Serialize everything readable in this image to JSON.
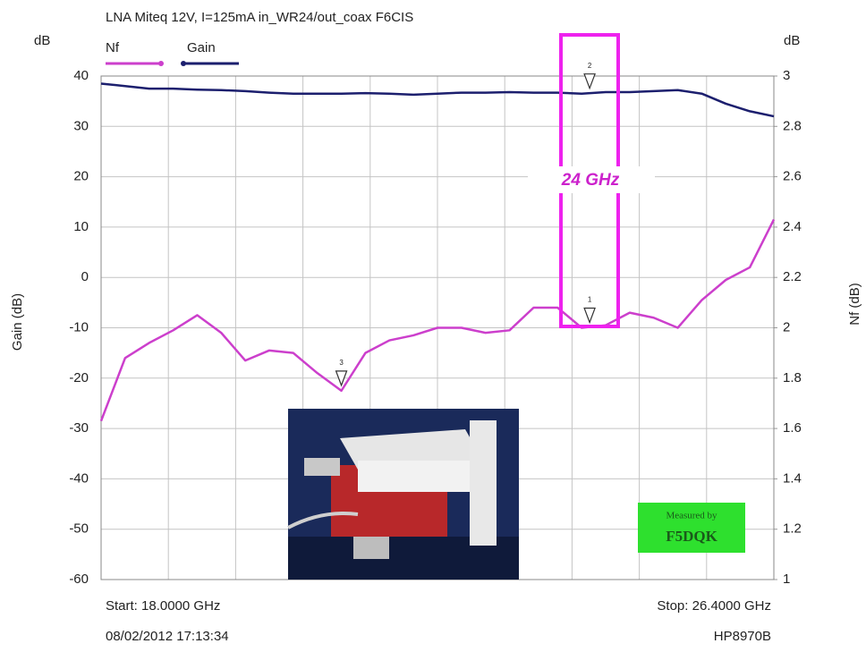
{
  "chart_data": {
    "type": "line",
    "title": "LNA Miteq 12V, I=125mA in_WR24/out_coax  F6CIS",
    "y_unit": "dB",
    "y2_unit": "dB",
    "y_label": "Gain (dB)",
    "y2_label": "Nf (dB)",
    "start_label": "Start: 18.0000 GHz",
    "stop_label": "Stop: 26.4000 GHz",
    "timestamp": "08/02/2012 17:13:34",
    "instrument": "HP8970B",
    "annotation": "24 GHz",
    "badge": [
      "Measured by",
      "F5DQK"
    ],
    "x": [
      18.0,
      18.3,
      18.6,
      18.9,
      19.2,
      19.5,
      19.8,
      20.1,
      20.4,
      20.7,
      21.0,
      21.3,
      21.6,
      21.9,
      22.2,
      22.5,
      22.8,
      23.1,
      23.4,
      23.7,
      24.0,
      24.3,
      24.6,
      24.9,
      25.2,
      25.5,
      25.8,
      26.1,
      26.4
    ],
    "xlim": [
      18.0,
      26.4
    ],
    "series": [
      {
        "name": "Nf",
        "color": "#cc3fcc",
        "axis": "y2",
        "values": [
          1.63,
          1.88,
          1.94,
          1.99,
          2.05,
          1.98,
          1.87,
          1.91,
          1.9,
          1.82,
          1.75,
          1.9,
          1.95,
          1.97,
          2.0,
          2.0,
          1.98,
          1.99,
          2.08,
          2.08,
          2.0,
          2.01,
          2.06,
          2.04,
          2.0,
          2.11,
          2.19,
          2.24,
          2.43
        ]
      },
      {
        "name": "Gain",
        "color": "#1c1f6e",
        "axis": "y",
        "values": [
          38.5,
          38,
          37.5,
          37.5,
          37.3,
          37.2,
          37,
          36.7,
          36.5,
          36.5,
          36.5,
          36.6,
          36.5,
          36.3,
          36.5,
          36.7,
          36.7,
          36.8,
          36.7,
          36.7,
          36.5,
          36.8,
          36.8,
          37,
          37.2,
          36.5,
          34.5,
          33,
          32
        ]
      }
    ],
    "markers": [
      {
        "label": "1",
        "x": 24.1,
        "y": 2.0,
        "axis": "y2"
      },
      {
        "label": "2",
        "x": 24.1,
        "y": 36.5,
        "axis": "y"
      },
      {
        "label": "3",
        "x": 21.0,
        "y": 1.75,
        "axis": "y2"
      }
    ],
    "ylim": [
      -60,
      40
    ],
    "yticks": [
      40,
      30,
      20,
      10,
      0,
      -10,
      -20,
      -30,
      -40,
      -50,
      -60
    ],
    "y2lim": [
      1,
      3
    ],
    "y2ticks": [
      3,
      2.8,
      2.6,
      2.4,
      2.2,
      2,
      1.8,
      1.6,
      1.4,
      1.2,
      1
    ],
    "grid": true
  }
}
